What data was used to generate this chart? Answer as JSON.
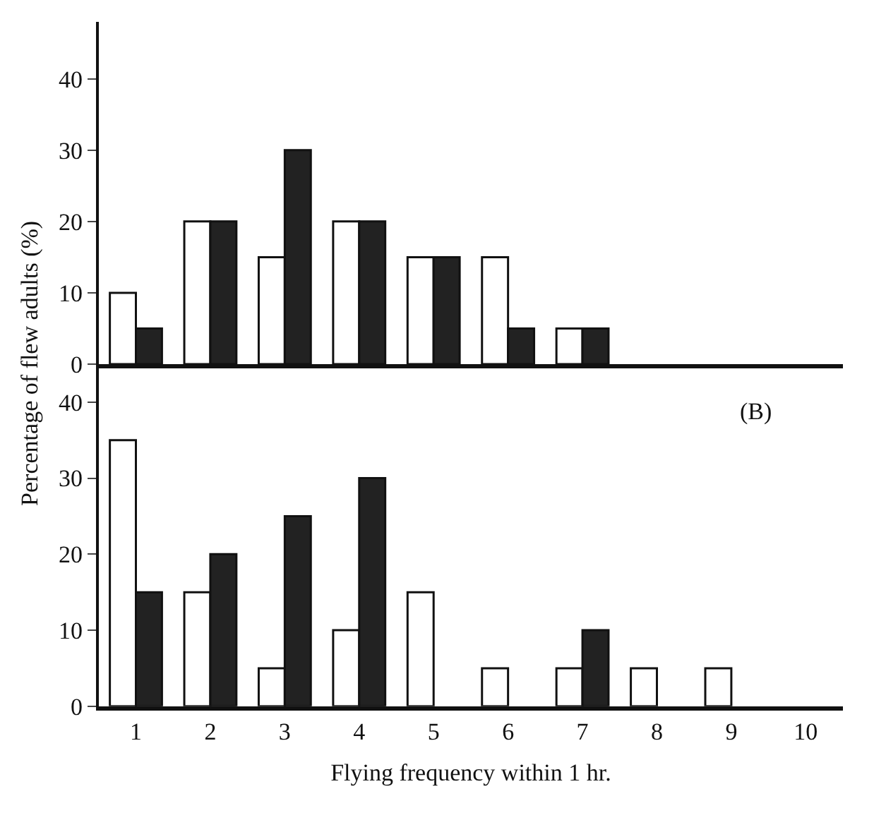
{
  "chart_data": [
    {
      "type": "bar",
      "ylabel": "Percentage of flew adults (%)",
      "categories": [
        "1",
        "2",
        "3",
        "4",
        "5",
        "6",
        "7",
        "8",
        "9",
        "10"
      ],
      "series": [
        {
          "color": "#ffffff",
          "values": [
            10,
            20,
            15,
            20,
            15,
            15,
            5,
            null,
            null,
            null
          ]
        },
        {
          "color": "#222222",
          "values": [
            5,
            20,
            30,
            20,
            15,
            5,
            5,
            null,
            null,
            null
          ]
        }
      ],
      "ylim": [
        0,
        48
      ],
      "yticks": [
        0,
        10,
        20,
        30,
        40
      ],
      "grid": false,
      "tick_labels": "y"
    },
    {
      "type": "bar",
      "xlabel": "Flying frequency within 1 hr.",
      "annotations": [
        "(B)"
      ],
      "categories": [
        "1",
        "2",
        "3",
        "4",
        "5",
        "6",
        "7",
        "8",
        "9",
        "10"
      ],
      "series": [
        {
          "color": "#ffffff",
          "values": [
            35,
            15,
            5,
            10,
            15,
            5,
            5,
            5,
            5,
            null
          ]
        },
        {
          "color": "#222222",
          "values": [
            15,
            20,
            25,
            30,
            null,
            null,
            10,
            null,
            null,
            null
          ]
        }
      ],
      "ylim": [
        0,
        45
      ],
      "yticks": [
        0,
        10,
        20,
        30,
        40
      ],
      "grid": false
    }
  ]
}
